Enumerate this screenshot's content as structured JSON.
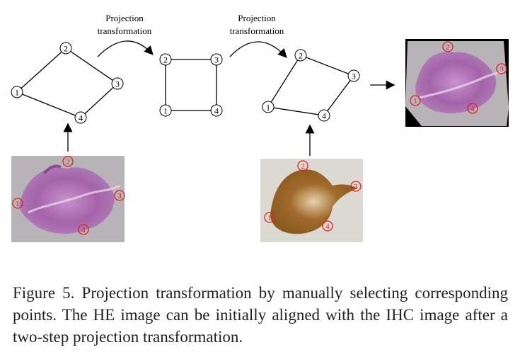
{
  "diagram": {
    "arrow_label_1": [
      "Projection",
      "transformation"
    ],
    "arrow_label_2": [
      "Projection",
      "transformation"
    ],
    "point_labels": [
      "1",
      "2",
      "3",
      "4"
    ],
    "node_group_he": [
      "1",
      "2",
      "3",
      "4"
    ],
    "node_group_square": [
      "1",
      "2",
      "3",
      "4"
    ],
    "node_group_ihc": [
      "1",
      "2",
      "3",
      "4"
    ],
    "images": {
      "he_image": {
        "description_color": "#a35fa8",
        "marker_color": "#e02020"
      },
      "ihc_image": {
        "description_color": "#8a5a20",
        "marker_color": "#e02020"
      },
      "result_image": {
        "description_color": "#a35fa8",
        "marker_color": "#e02020"
      }
    }
  },
  "caption": {
    "text": "Figure 5.  Projection transformation by manually selecting corresponding points.  The HE image can be initially aligned with the IHC image after a two-step projection transformation."
  }
}
